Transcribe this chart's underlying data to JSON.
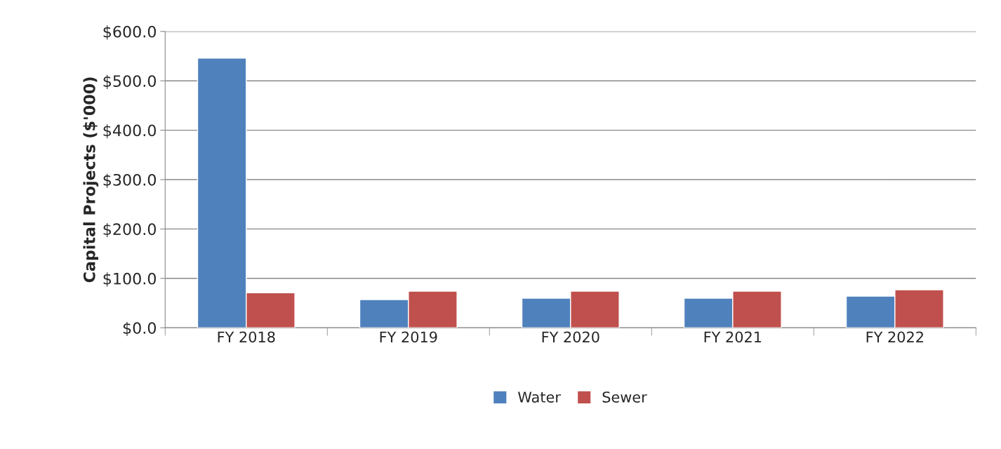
{
  "chart_data": {
    "type": "bar",
    "ylabel": "Capital Projects ($'000)",
    "categories": [
      "FY 2018",
      "FY 2019",
      "FY 2020",
      "FY 2021",
      "FY 2022"
    ],
    "series": [
      {
        "name": "Water",
        "color": "#4f81bd",
        "values": [
          546,
          57,
          60,
          60,
          64
        ]
      },
      {
        "name": "Sewer",
        "color": "#c0504d",
        "values": [
          71,
          74,
          74,
          74,
          77
        ]
      }
    ],
    "ylim": [
      0,
      600
    ],
    "yticks": [
      {
        "value": 0,
        "label": "$0.0"
      },
      {
        "value": 100,
        "label": "$100.0"
      },
      {
        "value": 200,
        "label": "$200.0"
      },
      {
        "value": 300,
        "label": "$300.0"
      },
      {
        "value": 400,
        "label": "$400.0"
      },
      {
        "value": 500,
        "label": "$500.0"
      },
      {
        "value": 600,
        "label": "$600.0"
      }
    ],
    "grid": "y",
    "legend": "bottom"
  }
}
